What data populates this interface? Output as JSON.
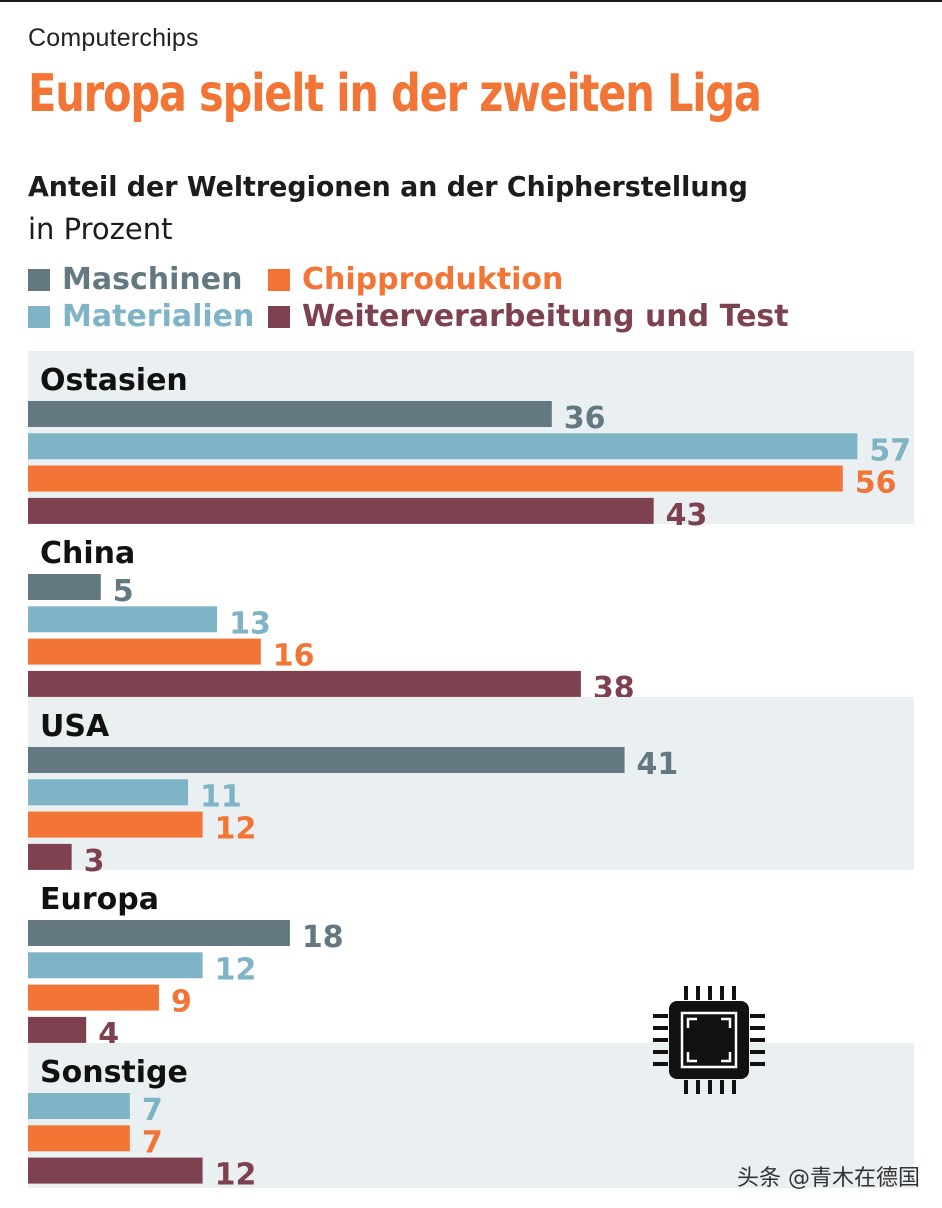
{
  "kicker": "Computerchips",
  "headline": "Europa spielt in der zweiten Liga",
  "chart_data": {
    "type": "bar",
    "orientation": "horizontal",
    "title": "Anteil der Weltregionen an der Chipherstellung",
    "unit": "in Prozent",
    "categories": [
      "Ostasien",
      "China",
      "USA",
      "Europa",
      "Sonstige"
    ],
    "series": [
      {
        "name": "Maschinen",
        "color": "#637880",
        "values": [
          36,
          5,
          41,
          18,
          null
        ]
      },
      {
        "name": "Materialien",
        "color": "#7fb3c6",
        "values": [
          57,
          13,
          11,
          12,
          7
        ]
      },
      {
        "name": "Chipproduktion",
        "color": "#f27535",
        "values": [
          56,
          16,
          12,
          9,
          7
        ]
      },
      {
        "name": "Weiterverarbeitung und Test",
        "color": "#7d4150",
        "values": [
          43,
          38,
          3,
          4,
          12
        ]
      }
    ],
    "band_color": "#eaeff2",
    "xlim": [
      0,
      60
    ]
  },
  "watermark": "头条 @青木在德国"
}
